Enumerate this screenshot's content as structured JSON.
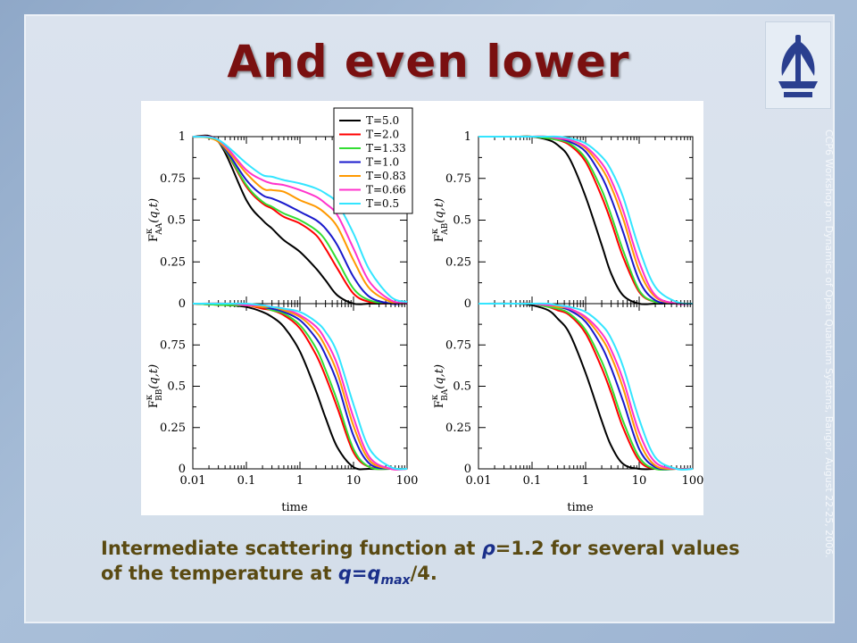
{
  "slide": {
    "title": "And even lower",
    "side_note": "CCP6 Workshop on Dynamics of Open Quantum Systems, Bangor, August 22-25, 2006.",
    "caption_line1_prefix": "Intermediate scattering function at ",
    "caption_rho": "ρ",
    "caption_line1_suffix": "=1.2 for several values",
    "caption_line2_prefix": "of the temperature at ",
    "caption_q": "q=q",
    "caption_max": "max",
    "caption_line2_suffix": "/4."
  },
  "chart_data": {
    "type": "line",
    "xlabel": "time",
    "xscale": "log",
    "xlim": [
      0.01,
      100
    ],
    "ylim": [
      0,
      1
    ],
    "xticks": [
      "0.01",
      "0.1",
      "1",
      "10",
      "100"
    ],
    "yticks": [
      "0",
      "0.25",
      "0.5",
      "0.75",
      "1"
    ],
    "legend_position": "top-center",
    "series_styles": [
      {
        "name": "T=5.0",
        "color": "#000000"
      },
      {
        "name": "T=2.0",
        "color": "#ff0000"
      },
      {
        "name": "T=1.33",
        "color": "#33dd33"
      },
      {
        "name": "T=1.0",
        "color": "#1a1acc"
      },
      {
        "name": "T=0.83",
        "color": "#ff9900"
      },
      {
        "name": "T=0.66",
        "color": "#ff33cc"
      },
      {
        "name": "T=0.5",
        "color": "#33e5ff"
      }
    ],
    "panels": [
      {
        "ylabel_main": "F",
        "ylabel_sup": "κ",
        "ylabel_sub": "AA",
        "ylabel_tail": "(q,t)",
        "x": [
          0.01,
          0.03,
          0.1,
          0.2,
          0.3,
          0.5,
          1,
          2,
          3,
          5,
          10,
          20,
          50,
          100
        ],
        "series": [
          {
            "name": "T=5.0",
            "values": [
              1,
              0.97,
              0.62,
              0.5,
              0.45,
              0.38,
              0.31,
              0.21,
              0.14,
              0.05,
              0.0,
              0.0,
              0.0,
              0.0
            ]
          },
          {
            "name": "T=2.0",
            "values": [
              1,
              0.97,
              0.7,
              0.6,
              0.57,
              0.52,
              0.48,
              0.41,
              0.33,
              0.21,
              0.06,
              0.01,
              0.0,
              0.0
            ]
          },
          {
            "name": "T=1.33",
            "values": [
              1,
              0.97,
              0.71,
              0.61,
              0.58,
              0.54,
              0.5,
              0.44,
              0.38,
              0.26,
              0.09,
              0.02,
              0.0,
              0.0
            ]
          },
          {
            "name": "T=1.0",
            "values": [
              1,
              0.97,
              0.74,
              0.65,
              0.63,
              0.6,
              0.55,
              0.5,
              0.45,
              0.35,
              0.16,
              0.04,
              0.0,
              0.0
            ]
          },
          {
            "name": "T=0.83",
            "values": [
              1,
              0.97,
              0.78,
              0.69,
              0.68,
              0.67,
              0.62,
              0.58,
              0.54,
              0.46,
              0.26,
              0.09,
              0.01,
              0.0
            ]
          },
          {
            "name": "T=0.66",
            "values": [
              1,
              0.98,
              0.8,
              0.74,
              0.72,
              0.71,
              0.68,
              0.64,
              0.6,
              0.53,
              0.33,
              0.13,
              0.02,
              0.0
            ]
          },
          {
            "name": "T=0.5",
            "values": [
              1,
              0.98,
              0.84,
              0.77,
              0.76,
              0.74,
              0.72,
              0.69,
              0.66,
              0.6,
              0.42,
              0.2,
              0.04,
              0.01
            ]
          }
        ]
      },
      {
        "ylabel_main": "F",
        "ylabel_sup": "κ",
        "ylabel_sub": "AB",
        "ylabel_tail": "(q,t)",
        "x": [
          0.01,
          0.05,
          0.1,
          0.2,
          0.3,
          0.5,
          1,
          2,
          3,
          5,
          10,
          20,
          50,
          100
        ],
        "series": [
          {
            "name": "T=5.0",
            "values": [
              1,
              1,
              1,
              0.98,
              0.95,
              0.87,
              0.64,
              0.35,
              0.18,
              0.05,
              0.0,
              0.0,
              0.0,
              0.0
            ]
          },
          {
            "name": "T=2.0",
            "values": [
              1,
              1,
              1,
              0.99,
              0.98,
              0.95,
              0.85,
              0.64,
              0.49,
              0.28,
              0.07,
              0.01,
              0.0,
              0.0
            ]
          },
          {
            "name": "T=1.33",
            "values": [
              1,
              1,
              1,
              0.99,
              0.98,
              0.96,
              0.87,
              0.68,
              0.53,
              0.32,
              0.08,
              0.01,
              0.0,
              0.0
            ]
          },
          {
            "name": "T=1.0",
            "values": [
              1,
              1,
              1,
              1,
              0.99,
              0.97,
              0.91,
              0.76,
              0.63,
              0.43,
              0.14,
              0.02,
              0.0,
              0.0
            ]
          },
          {
            "name": "T=0.83",
            "values": [
              1,
              1,
              1,
              1,
              0.99,
              0.98,
              0.93,
              0.81,
              0.7,
              0.51,
              0.2,
              0.04,
              0.0,
              0.0
            ]
          },
          {
            "name": "T=0.66",
            "values": [
              1,
              1,
              1,
              1,
              0.99,
              0.98,
              0.94,
              0.84,
              0.74,
              0.56,
              0.25,
              0.05,
              0.0,
              0.0
            ]
          },
          {
            "name": "T=0.5",
            "values": [
              1,
              1,
              1,
              1,
              1,
              0.99,
              0.96,
              0.88,
              0.8,
              0.64,
              0.33,
              0.1,
              0.01,
              0.0
            ]
          }
        ]
      },
      {
        "ylabel_main": "F",
        "ylabel_sup": "κ",
        "ylabel_sub": "BB",
        "ylabel_tail": "(q,t)",
        "x": [
          0.01,
          0.05,
          0.1,
          0.2,
          0.3,
          0.5,
          1,
          2,
          3,
          5,
          10,
          20,
          50,
          100
        ],
        "series": [
          {
            "name": "T=5.0",
            "values": [
              1,
              0.99,
              0.98,
              0.95,
              0.92,
              0.86,
              0.71,
              0.47,
              0.31,
              0.13,
              0.01,
              0.0,
              0.0,
              0.0
            ]
          },
          {
            "name": "T=2.0",
            "values": [
              1,
              0.99,
              0.99,
              0.97,
              0.96,
              0.93,
              0.85,
              0.69,
              0.56,
              0.37,
              0.1,
              0.01,
              0.0,
              0.0
            ]
          },
          {
            "name": "T=1.33",
            "values": [
              1,
              0.99,
              0.99,
              0.98,
              0.96,
              0.94,
              0.87,
              0.73,
              0.6,
              0.41,
              0.12,
              0.01,
              0.0,
              0.0
            ]
          },
          {
            "name": "T=1.0",
            "values": [
              1,
              1,
              0.99,
              0.98,
              0.97,
              0.95,
              0.9,
              0.79,
              0.69,
              0.52,
              0.2,
              0.03,
              0.0,
              0.0
            ]
          },
          {
            "name": "T=0.83",
            "values": [
              1,
              1,
              0.99,
              0.98,
              0.98,
              0.96,
              0.92,
              0.83,
              0.74,
              0.58,
              0.26,
              0.05,
              0.0,
              0.0
            ]
          },
          {
            "name": "T=0.66",
            "values": [
              1,
              1,
              0.99,
              0.99,
              0.98,
              0.97,
              0.93,
              0.86,
              0.78,
              0.63,
              0.31,
              0.07,
              0.0,
              0.0
            ]
          },
          {
            "name": "T=0.5",
            "values": [
              1,
              1,
              1,
              0.99,
              0.98,
              0.97,
              0.95,
              0.89,
              0.83,
              0.7,
              0.39,
              0.12,
              0.01,
              0.0
            ]
          }
        ]
      },
      {
        "ylabel_main": "F",
        "ylabel_sup": "κ",
        "ylabel_sub": "BA",
        "ylabel_tail": "(q,t)",
        "x": [
          0.01,
          0.05,
          0.1,
          0.2,
          0.3,
          0.5,
          1,
          2,
          3,
          5,
          10,
          20,
          50,
          100
        ],
        "series": [
          {
            "name": "T=5.0",
            "values": [
              1,
              1,
              0.99,
              0.96,
              0.91,
              0.82,
              0.58,
              0.29,
              0.14,
              0.03,
              0.0,
              0.0,
              0.0,
              0.0
            ]
          },
          {
            "name": "T=2.0",
            "values": [
              1,
              1,
              1,
              0.98,
              0.96,
              0.93,
              0.82,
              0.61,
              0.46,
              0.25,
              0.05,
              0.0,
              0.0,
              0.0
            ]
          },
          {
            "name": "T=1.33",
            "values": [
              1,
              1,
              1,
              0.98,
              0.97,
              0.94,
              0.84,
              0.65,
              0.5,
              0.29,
              0.07,
              0.0,
              0.0,
              0.0
            ]
          },
          {
            "name": "T=1.0",
            "values": [
              1,
              1,
              1,
              0.99,
              0.98,
              0.96,
              0.89,
              0.74,
              0.61,
              0.41,
              0.12,
              0.01,
              0.0,
              0.0
            ]
          },
          {
            "name": "T=0.83",
            "values": [
              1,
              1,
              1,
              0.99,
              0.98,
              0.97,
              0.91,
              0.79,
              0.68,
              0.49,
              0.17,
              0.02,
              0.0,
              0.0
            ]
          },
          {
            "name": "T=0.66",
            "values": [
              1,
              1,
              1,
              0.99,
              0.99,
              0.97,
              0.92,
              0.82,
              0.72,
              0.54,
              0.22,
              0.04,
              0.0,
              0.0
            ]
          },
          {
            "name": "T=0.5",
            "values": [
              1,
              1,
              1,
              1,
              0.99,
              0.98,
              0.95,
              0.87,
              0.79,
              0.62,
              0.3,
              0.07,
              0.0,
              0.0
            ]
          }
        ]
      }
    ]
  }
}
